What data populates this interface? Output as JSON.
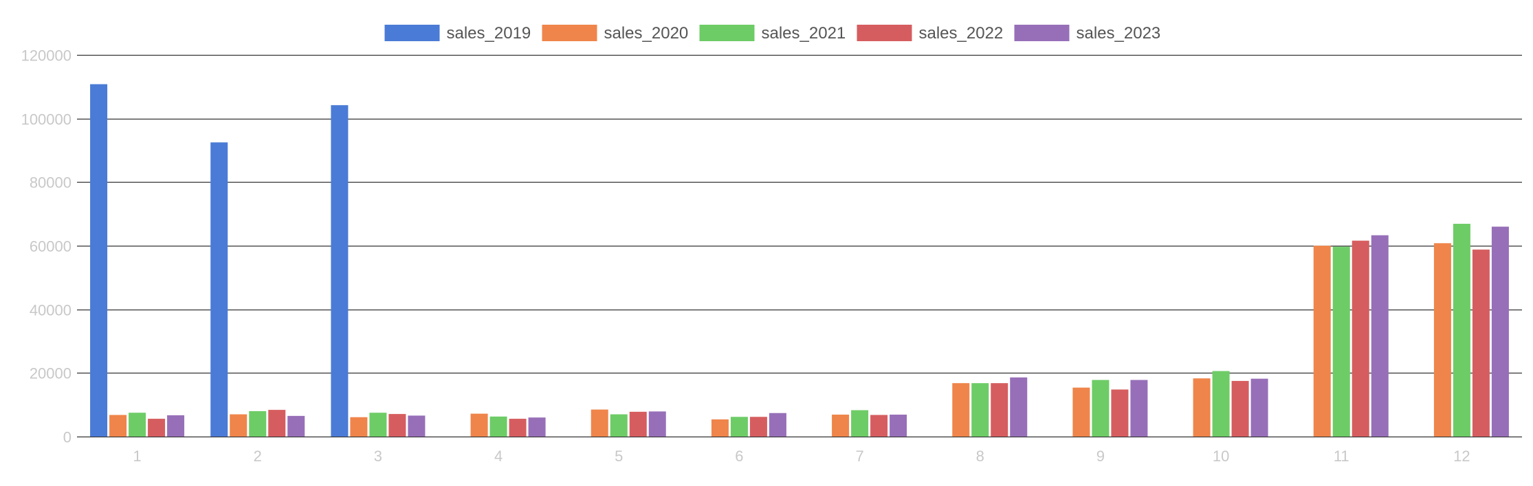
{
  "chart_data": {
    "type": "bar",
    "categories": [
      "1",
      "2",
      "3",
      "4",
      "5",
      "6",
      "7",
      "8",
      "9",
      "10",
      "11",
      "12"
    ],
    "ylim": [
      0,
      120000
    ],
    "y_ticks": [
      0,
      20000,
      40000,
      60000,
      80000,
      100000,
      120000
    ],
    "grid": true,
    "legend_position": "top-center",
    "series": [
      {
        "name": "sales_2019",
        "color": "#4a7bd6",
        "values": [
          110800,
          92500,
          104200,
          null,
          null,
          null,
          null,
          null,
          null,
          null,
          null,
          null
        ]
      },
      {
        "name": "sales_2020",
        "color": "#ef854a",
        "values": [
          6800,
          7000,
          6100,
          7200,
          8500,
          5400,
          6900,
          16800,
          15400,
          18300,
          60000,
          60800
        ]
      },
      {
        "name": "sales_2021",
        "color": "#6dcc66",
        "values": [
          7500,
          8000,
          7500,
          6300,
          7000,
          6200,
          8300,
          16800,
          17800,
          20600,
          59700,
          66900
        ]
      },
      {
        "name": "sales_2022",
        "color": "#d65d5f",
        "values": [
          5600,
          8400,
          7100,
          5600,
          7800,
          6200,
          6800,
          16800,
          14800,
          17500,
          61600,
          58800
        ]
      },
      {
        "name": "sales_2023",
        "color": "#976fb8",
        "values": [
          6700,
          6500,
          6600,
          6000,
          7900,
          7400,
          6900,
          18600,
          17800,
          18200,
          63300,
          66000
        ]
      }
    ]
  }
}
